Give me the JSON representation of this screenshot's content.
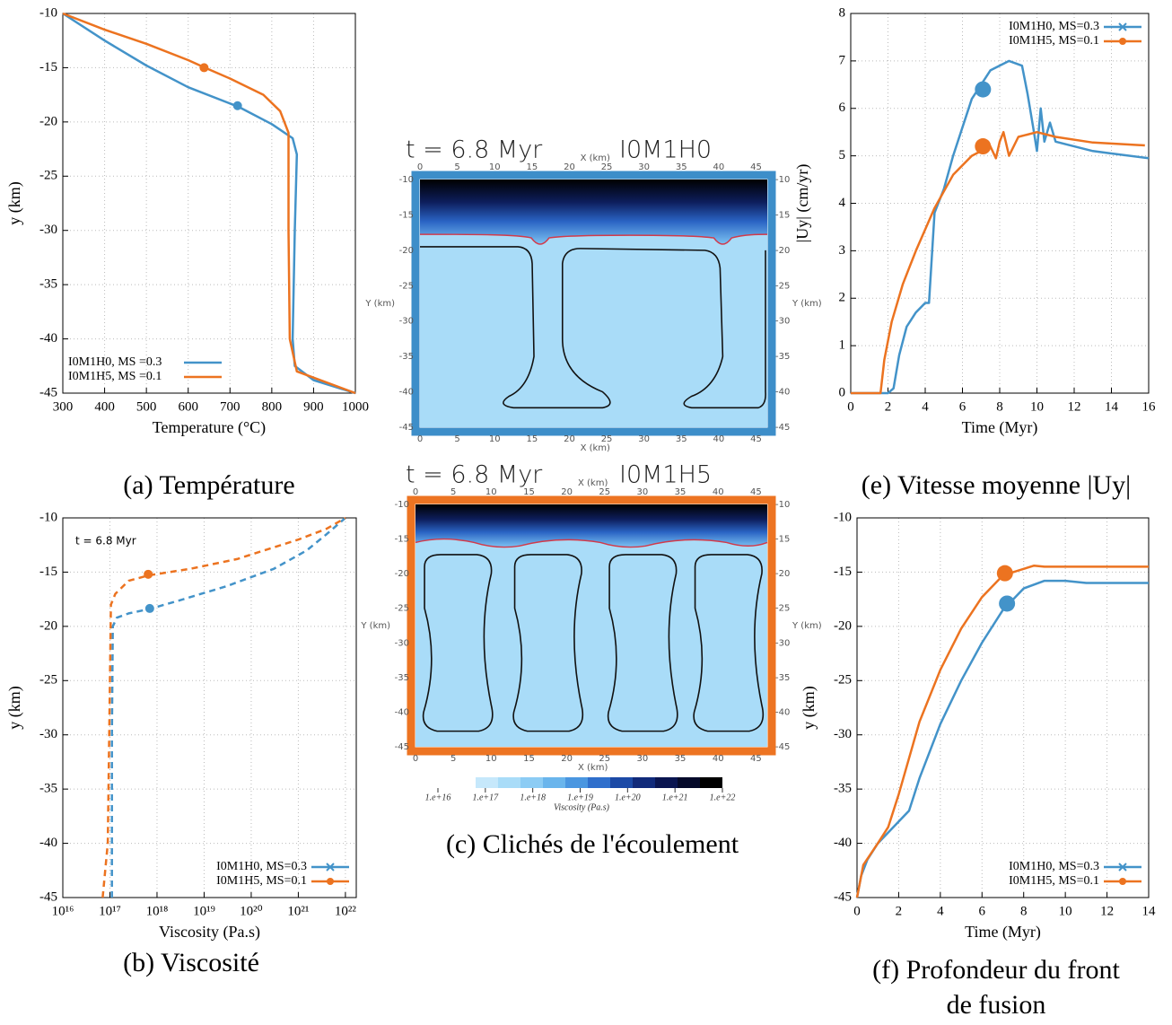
{
  "chart_data": [
    {
      "type": "line",
      "xlabel": "Temperature (°C)",
      "ylabel": "y (km)",
      "xlim": [
        300,
        1000
      ],
      "xticks": [
        300,
        400,
        500,
        600,
        700,
        800,
        900,
        1000
      ],
      "ylim": [
        -45,
        -10
      ],
      "yticks": [
        -45,
        -40,
        -35,
        -30,
        -25,
        -20,
        -15,
        -10
      ],
      "grid": true,
      "legend": "lower left",
      "series": [
        {
          "name": "I0M1H0, MS =0.3",
          "color": "#4393c9",
          "x": [
            300,
            400,
            500,
            600,
            700,
            720,
            800,
            850,
            860,
            855,
            850,
            855,
            900,
            1000
          ],
          "values": [
            -10,
            -12.5,
            -14.8,
            -16.8,
            -18.3,
            -18.6,
            -20.2,
            -21.5,
            -23,
            -30,
            -40,
            -42.5,
            -43.8,
            -45
          ],
          "marker": {
            "x": 718,
            "y": -18.5
          }
        },
        {
          "name": "I0M1H5, MS =0.1",
          "color": "#ec7320",
          "x": [
            300,
            400,
            500,
            600,
            640,
            700,
            780,
            820,
            840,
            840,
            843,
            860,
            1000
          ],
          "values": [
            -10,
            -11.5,
            -12.8,
            -14.3,
            -15,
            -16,
            -17.5,
            -19,
            -21,
            -30,
            -40,
            -43,
            -45
          ],
          "marker": {
            "x": 638,
            "y": -15
          }
        }
      ]
    },
    {
      "type": "line",
      "xlabel": "Viscosity (Pa.s)",
      "ylabel": "y (km)",
      "xscale": "log",
      "xlim": [
        1e+16,
        1.7e+22
      ],
      "xticks": [
        {
          "value": 1e+16,
          "label": "10¹⁶"
        },
        {
          "value": 1e+17,
          "label": "10¹⁷"
        },
        {
          "value": 1e+18,
          "label": "10¹⁸"
        },
        {
          "value": 1e+19,
          "label": "10¹⁹"
        },
        {
          "value": 1e+20,
          "label": "10²⁰"
        },
        {
          "value": 1e+21,
          "label": "10²¹"
        },
        {
          "value": 1e+22,
          "label": "10²²"
        }
      ],
      "ylim": [
        -45,
        -10
      ],
      "yticks": [
        -45,
        -40,
        -35,
        -30,
        -25,
        -20,
        -15,
        -10
      ],
      "grid": true,
      "legend": "lower right",
      "linestyle": "dashed",
      "annotation": "t = 6.8 Myr",
      "series": [
        {
          "name": "I0M1H0, MS=0.3",
          "color": "#4393c9",
          "symbol": "x",
          "x": [
            1.1e+17,
            1.1e+17,
            1.15e+17,
            1.4e+17,
            2.5e+17,
            7e+17,
            3e+18,
            3e+19,
            3e+20,
            1.5e+21,
            4e+21,
            1e+22
          ],
          "values": [
            -45,
            -30,
            -20,
            -19.2,
            -18.8,
            -18.4,
            -17.6,
            -16.3,
            -14.7,
            -13,
            -11.5,
            -10
          ],
          "marker": {
            "x": 7e+17,
            "y": -18.35
          }
        },
        {
          "name": "I0M1H5, MS=0.1",
          "color": "#ec7320",
          "symbol": "circle",
          "x": [
            7e+16,
            9e+16,
            1e+17,
            1.05e+17,
            1.3e+17,
            2.5e+17,
            6.5e+17,
            5e+18,
            5e+19,
            1e+21,
            4e+21,
            1e+22
          ],
          "values": [
            -45,
            -40,
            -25,
            -18,
            -17,
            -15.8,
            -15.3,
            -14.7,
            -13.8,
            -12,
            -11,
            -10
          ],
          "marker": {
            "x": 6.5e+17,
            "y": -15.2
          }
        }
      ]
    },
    {
      "type": "line",
      "xlabel": "Time (Myr)",
      "ylabel": "|Uy| (cm/yr)",
      "xlim": [
        0,
        16
      ],
      "xticks": [
        0,
        2,
        4,
        6,
        8,
        10,
        12,
        14,
        16
      ],
      "ylim": [
        0,
        8
      ],
      "yticks": [
        0,
        1,
        2,
        3,
        4,
        5,
        6,
        7,
        8
      ],
      "grid": true,
      "legend": "upper right",
      "series": [
        {
          "name": "I0M1H0, MS=0.3",
          "color": "#4393c9",
          "symbol": "x",
          "x": [
            0,
            2,
            2.3,
            2.6,
            3,
            3.5,
            4,
            4.2,
            4.5,
            5,
            5.5,
            6,
            6.5,
            7,
            7.5,
            8.5,
            9.2,
            9.5,
            9.8,
            10,
            10.2,
            10.4,
            10.7,
            11,
            12,
            13,
            14,
            16
          ],
          "values": [
            0,
            0,
            0.1,
            0.8,
            1.4,
            1.7,
            1.9,
            1.9,
            3.8,
            4.3,
            5,
            5.6,
            6.2,
            6.5,
            6.8,
            7,
            6.9,
            6.3,
            5.6,
            5.1,
            6,
            5.3,
            5.7,
            5.3,
            5.2,
            5.1,
            5.05,
            4.95
          ],
          "marker": {
            "x": 7.1,
            "y": 6.4
          }
        },
        {
          "name": "I0M1H5, MS=0.1",
          "color": "#ec7320",
          "symbol": "circle",
          "x": [
            0,
            1.6,
            1.8,
            2.2,
            2.8,
            3.5,
            4.5,
            5.5,
            6.5,
            7,
            7.5,
            7.8,
            8,
            8.2,
            8.5,
            9,
            10,
            11,
            13,
            15.8
          ],
          "values": [
            0,
            0,
            0.7,
            1.5,
            2.3,
            3,
            3.9,
            4.6,
            5,
            5.1,
            5.2,
            4.95,
            5.3,
            5.5,
            5,
            5.4,
            5.5,
            5.4,
            5.28,
            5.22
          ],
          "marker": {
            "x": 7.1,
            "y": 5.2
          }
        }
      ]
    },
    {
      "type": "line",
      "xlabel": "Time (Myr)",
      "ylabel": "y (km)",
      "xlim": [
        0,
        14
      ],
      "xticks": [
        0,
        2,
        4,
        6,
        8,
        10,
        12,
        14
      ],
      "ylim": [
        -45,
        -10
      ],
      "yticks": [
        -45,
        -40,
        -35,
        -30,
        -25,
        -20,
        -15,
        -10
      ],
      "grid": true,
      "legend": "lower right",
      "series": [
        {
          "name": "I0M1H0, MS=0.3",
          "color": "#4393c9",
          "symbol": "x",
          "x": [
            0,
            0.2,
            0.5,
            1,
            1.5,
            2,
            2.5,
            3,
            4,
            5,
            6,
            7,
            8,
            9,
            10,
            11,
            14
          ],
          "values": [
            -45,
            -43,
            -41.5,
            -40,
            -39,
            -38,
            -37,
            -34,
            -29,
            -25,
            -21.5,
            -18.5,
            -16.5,
            -15.8,
            -15.8,
            -16,
            -16
          ],
          "marker": {
            "x": 7.2,
            "y": -17.9
          }
        },
        {
          "name": "I0M1H5, MS=0.1",
          "color": "#ec7320",
          "symbol": "circle",
          "x": [
            0,
            0.3,
            1,
            1.5,
            2,
            3,
            4,
            5,
            6,
            7,
            8,
            8.5,
            9,
            14
          ],
          "values": [
            -45,
            -42,
            -40,
            -38.5,
            -35.5,
            -28.8,
            -24,
            -20.2,
            -17.3,
            -15.3,
            -14.7,
            -14.4,
            -14.5,
            -14.5
          ],
          "marker": {
            "x": 7.1,
            "y": -15.1
          }
        }
      ]
    }
  ],
  "snapshots": [
    {
      "title": "t = 6.8 Myr",
      "label": "I0M1H0",
      "frame_color": "#3d8ec9"
    },
    {
      "title": "t = 6.8 Myr",
      "label": "I0M1H5",
      "frame_color": "#ed7422"
    }
  ],
  "snapshot_axes": {
    "xlabel": "X (km)",
    "ylabel": "Y (km)",
    "xlim": [
      0,
      46.5
    ],
    "xticks": [
      0,
      5,
      10,
      15,
      20,
      25,
      30,
      35,
      40,
      45
    ],
    "ylim": [
      -45,
      -10
    ],
    "yticks": [
      -10,
      -15,
      -20,
      -25,
      -30,
      -35,
      -40,
      -45
    ]
  },
  "colorbar": {
    "label": "Viscosity (Pa.s)",
    "clim": [
      1e+16,
      1e+22
    ],
    "ticks": [
      {
        "value": 1e+16,
        "label": "1.e+16"
      },
      {
        "value": 1e+17,
        "label": "1.e+17"
      },
      {
        "value": 1e+18,
        "label": "1.e+18"
      },
      {
        "value": 1e+19,
        "label": "1.e+19"
      },
      {
        "value": 1e+20,
        "label": "1.e+20"
      },
      {
        "value": 1e+21,
        "label": "1.e+21"
      },
      {
        "value": 1e+22,
        "label": "1.e+22"
      }
    ]
  },
  "captions": {
    "a": "(a) Température",
    "b": "(b) Viscosité",
    "c": "(c) Clichés de l'écoulement",
    "e": "(e) Vitesse moyenne |Uy|",
    "f": [
      "(f) Profondeur du front",
      "de fusion"
    ]
  }
}
